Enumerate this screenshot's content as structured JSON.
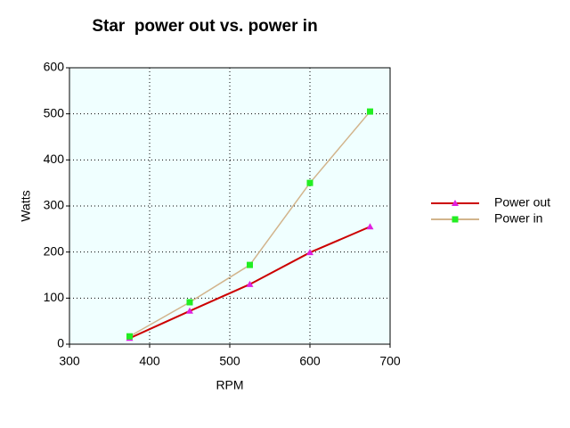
{
  "chart_data": {
    "type": "line",
    "title": "Star  power out vs. power in",
    "x_label": "RPM",
    "y_label": "Watts",
    "x": [
      375,
      450,
      525,
      600,
      675
    ],
    "series": [
      {
        "name": "Power out",
        "color": "#cc0000",
        "marker_color": "#e020e0",
        "marker": "triangle",
        "values": [
          13,
          72,
          130,
          199,
          255
        ]
      },
      {
        "name": "Power in",
        "color": "#d2b48c",
        "marker_color": "#22ee22",
        "marker": "square",
        "values": [
          17,
          91,
          172,
          350,
          505
        ]
      }
    ],
    "xlim": [
      300,
      700
    ],
    "xticks": [
      300,
      400,
      500,
      600,
      700
    ],
    "ylim": [
      0,
      600
    ],
    "yticks": [
      0,
      100,
      200,
      300,
      400,
      500,
      600
    ],
    "grid": true,
    "legend": "right",
    "background": "#f0ffff"
  }
}
